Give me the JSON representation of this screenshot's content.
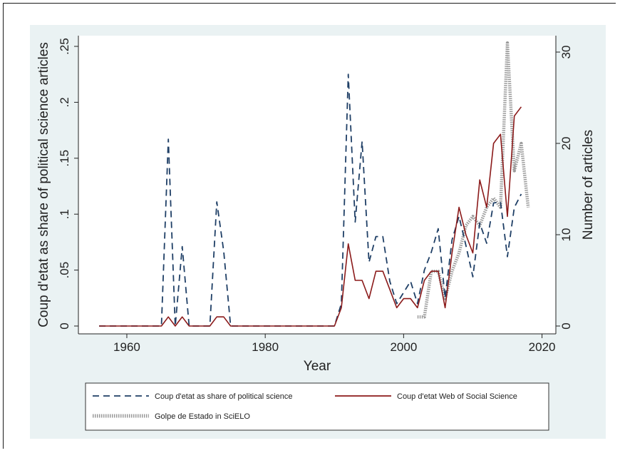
{
  "chart_data": {
    "type": "line",
    "xlabel": "Year",
    "ylabel_left": "Coup d'etat as share of political science articles",
    "ylabel_right": "Number of articles",
    "xlim": [
      1953,
      2022
    ],
    "ylim_left": [
      0,
      0.25
    ],
    "ylim_right": [
      0,
      31
    ],
    "x_ticks": [
      "1960",
      "1980",
      "2000",
      "2020"
    ],
    "y_ticks_left": [
      "0",
      ".05",
      ".1",
      ".15",
      ".2",
      ".25"
    ],
    "y_ticks_right": [
      "0",
      "10",
      "20",
      "30"
    ],
    "grid": false,
    "legend_position": "bottom",
    "colors": {
      "background": "#eaf2f3",
      "plot_area": "#ffffff",
      "series_share": "#1f3f66",
      "series_wss": "#8b1a1a",
      "series_scielo": "#9a9a9a"
    },
    "series": [
      {
        "name": "Coup d'etat as share of political science",
        "axis": "left",
        "style": "dashed",
        "x": [
          1956,
          1957,
          1958,
          1959,
          1960,
          1961,
          1962,
          1963,
          1964,
          1965,
          1966,
          1967,
          1968,
          1969,
          1970,
          1971,
          1972,
          1973,
          1974,
          1975,
          1976,
          1977,
          1978,
          1979,
          1980,
          1981,
          1982,
          1983,
          1984,
          1985,
          1986,
          1987,
          1988,
          1989,
          1990,
          1991,
          1992,
          1993,
          1994,
          1995,
          1996,
          1997,
          1998,
          1999,
          2000,
          2001,
          2002,
          2003,
          2004,
          2005,
          2006,
          2007,
          2008,
          2009,
          2010,
          2011,
          2012,
          2013,
          2014,
          2015,
          2016,
          2017
        ],
        "y": [
          0,
          0,
          0,
          0,
          0,
          0,
          0,
          0,
          0,
          0,
          0.167,
          0,
          0.071,
          0,
          0,
          0,
          0,
          0.111,
          0.067,
          0,
          0,
          0,
          0,
          0,
          0,
          0,
          0,
          0,
          0,
          0,
          0,
          0,
          0,
          0,
          0,
          0.02,
          0.225,
          0.093,
          0.165,
          0.057,
          0.08,
          0.08,
          0.04,
          0.02,
          0.03,
          0.04,
          0.02,
          0.05,
          0.066,
          0.087,
          0.025,
          0.077,
          0.098,
          0.072,
          0.044,
          0.092,
          0.074,
          0.11,
          0.111,
          0.062,
          0.106,
          0.118
        ]
      },
      {
        "name": "Coup d'etat Web of Social Science",
        "axis": "right",
        "style": "solid",
        "x": [
          1956,
          1957,
          1958,
          1959,
          1960,
          1961,
          1962,
          1963,
          1964,
          1965,
          1966,
          1967,
          1968,
          1969,
          1970,
          1971,
          1972,
          1973,
          1974,
          1975,
          1976,
          1977,
          1978,
          1979,
          1980,
          1981,
          1982,
          1983,
          1984,
          1985,
          1986,
          1987,
          1988,
          1989,
          1990,
          1991,
          1992,
          1993,
          1994,
          1995,
          1996,
          1997,
          1998,
          1999,
          2000,
          2001,
          2002,
          2003,
          2004,
          2005,
          2006,
          2007,
          2008,
          2009,
          2010,
          2011,
          2012,
          2013,
          2014,
          2015,
          2016,
          2017
        ],
        "y": [
          0,
          0,
          0,
          0,
          0,
          0,
          0,
          0,
          0,
          0,
          1,
          0,
          1,
          0,
          0,
          0,
          0,
          1,
          1,
          0,
          0,
          0,
          0,
          0,
          0,
          0,
          0,
          0,
          0,
          0,
          0,
          0,
          0,
          0,
          0,
          2,
          9,
          5,
          5,
          3,
          6,
          6,
          4,
          2,
          3,
          3,
          2,
          5,
          6,
          6,
          2,
          8,
          13,
          10,
          8,
          16,
          13,
          20,
          21,
          12,
          23,
          24
        ]
      },
      {
        "name": "Golpe de Estado in SciELO",
        "axis": "right",
        "style": "dotted",
        "x": [
          2002,
          2003,
          2004,
          2005,
          2006,
          2007,
          2008,
          2009,
          2010,
          2011,
          2012,
          2013,
          2014,
          2015,
          2016,
          2017,
          2018
        ],
        "y": [
          1,
          1,
          6,
          6,
          3,
          6,
          8,
          11,
          12,
          11,
          13,
          14,
          13,
          31,
          17,
          20,
          13
        ]
      }
    ]
  }
}
